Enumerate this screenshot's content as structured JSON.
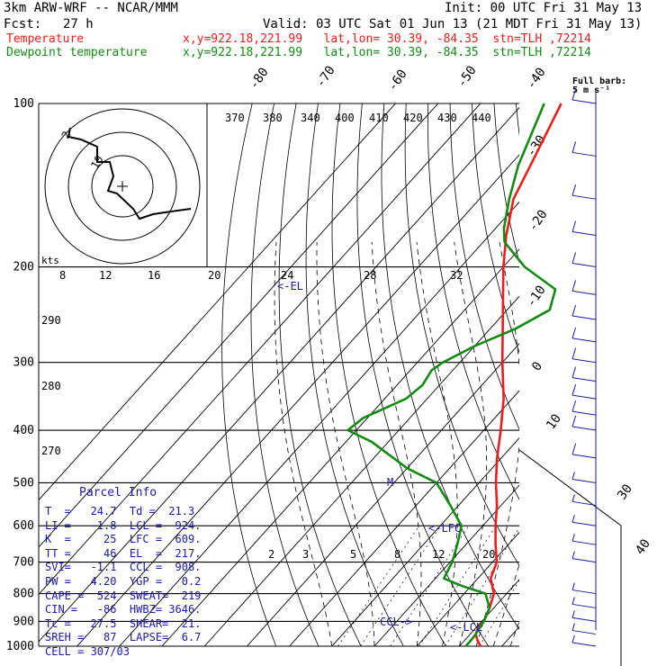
{
  "header": {
    "model": "3km ARW-WRF -- NCAR/MMM",
    "init": "Init: 00 UTC Fri 31 May 13",
    "fcst_label": "Fcst:",
    "fcst_value": "27 h",
    "valid": "Valid: 03 UTC Sat 01 Jun 13 (21 MDT Fri 31 May 13)",
    "temp_label": "Temperature",
    "dew_label": "Dewpoint temperature",
    "loc_line": "x,y=922.18,221.99   lat,lon= 30.39, -84.35  stn=TLH ,72214",
    "temp_color": "#ee1c1c",
    "dew_color": "#138a13"
  },
  "full_barb": {
    "line1": "Full barb:",
    "line2": "5 m s⁻¹"
  },
  "parcel_info": {
    "title": "Parcel Info",
    "rows": [
      "T  =   24.7  Td =  21.3",
      "LI =   -1.8  LCL =  924.",
      "K  =     25  LFC =  609.",
      "TT =     46  EL  =  217.",
      "SVI=   -1.1  CCL =  908.",
      "PW =   4.20  YGP =   0.2",
      "CAPE =  524  SWEAT=  219",
      "CIN =   -86  HWBZ= 3646.",
      "Tc =   27.5  SHEAR=  21.",
      "SREH =   87  LAPSE=  6.7",
      "CELL = 307/03"
    ]
  },
  "annotations": {
    "el": "<-EL",
    "lfc": "<-LFC",
    "lcl": "<-LCL",
    "ccl": "CCL->",
    "m": "M"
  },
  "chart_data": {
    "type": "skew-t",
    "pressure_levels": [
      100,
      200,
      300,
      400,
      500,
      600,
      700,
      800,
      900,
      1000
    ],
    "temperature_isotherms": [
      -80,
      -70,
      -60,
      -50,
      -40,
      -30,
      -20,
      -10,
      0,
      10,
      30,
      40
    ],
    "dry_adiabat_labels": [
      370,
      380,
      340,
      400,
      410,
      420,
      430,
      440
    ],
    "mixing_ratio_labels": [
      2,
      3,
      5,
      8,
      12,
      20
    ],
    "hodograph_speed_labels": [
      8,
      12,
      16,
      20,
      24,
      28,
      32
    ],
    "hodograph_unit": "kts",
    "left_axis_labels": [
      "290",
      "280",
      "270"
    ],
    "hodograph_ring_labels": [
      "10",
      "2"
    ],
    "temperature_profile": {
      "name": "Temperature",
      "points": [
        [
          1000,
          25
        ],
        [
          975,
          23
        ],
        [
          950,
          21.3
        ],
        [
          925,
          20.5
        ],
        [
          900,
          20.5
        ],
        [
          850,
          19
        ],
        [
          800,
          17
        ],
        [
          750,
          13
        ],
        [
          700,
          11
        ],
        [
          650,
          7
        ],
        [
          600,
          3
        ],
        [
          550,
          -1
        ],
        [
          500,
          -6
        ],
        [
          450,
          -11
        ],
        [
          400,
          -16
        ],
        [
          350,
          -22
        ],
        [
          300,
          -30
        ],
        [
          250,
          -39
        ],
        [
          200,
          -50
        ],
        [
          175,
          -56
        ],
        [
          150,
          -62
        ],
        [
          125,
          -66
        ],
        [
          100,
          -71
        ]
      ]
    },
    "dewpoint_profile": {
      "name": "Dewpoint temperature",
      "points": [
        [
          1000,
          21.5
        ],
        [
          975,
          21.5
        ],
        [
          950,
          21.3
        ],
        [
          900,
          20.5
        ],
        [
          850,
          19
        ],
        [
          800,
          15
        ],
        [
          775,
          8
        ],
        [
          750,
          2
        ],
        [
          700,
          0.5
        ],
        [
          650,
          -2
        ],
        [
          600,
          -5
        ],
        [
          550,
          -12
        ],
        [
          500,
          -20
        ],
        [
          470,
          -30
        ],
        [
          420,
          -44
        ],
        [
          400,
          -52
        ],
        [
          380,
          -51
        ],
        [
          350,
          -45
        ],
        [
          330,
          -44
        ],
        [
          310,
          -45
        ],
        [
          300,
          -44
        ],
        [
          280,
          -40
        ],
        [
          260,
          -34
        ],
        [
          240,
          -30
        ],
        [
          220,
          -33
        ],
        [
          200,
          -45
        ],
        [
          180,
          -55
        ],
        [
          170,
          -58
        ],
        [
          150,
          -63
        ],
        [
          130,
          -68
        ],
        [
          100,
          -75
        ]
      ]
    },
    "wind_barbs": {
      "side": "right",
      "levels": [
        100,
        125,
        150,
        175,
        200,
        225,
        250,
        275,
        300,
        325,
        350,
        375,
        400,
        450,
        500,
        550,
        600,
        650,
        700,
        800,
        850,
        900,
        950,
        1000
      ]
    }
  }
}
